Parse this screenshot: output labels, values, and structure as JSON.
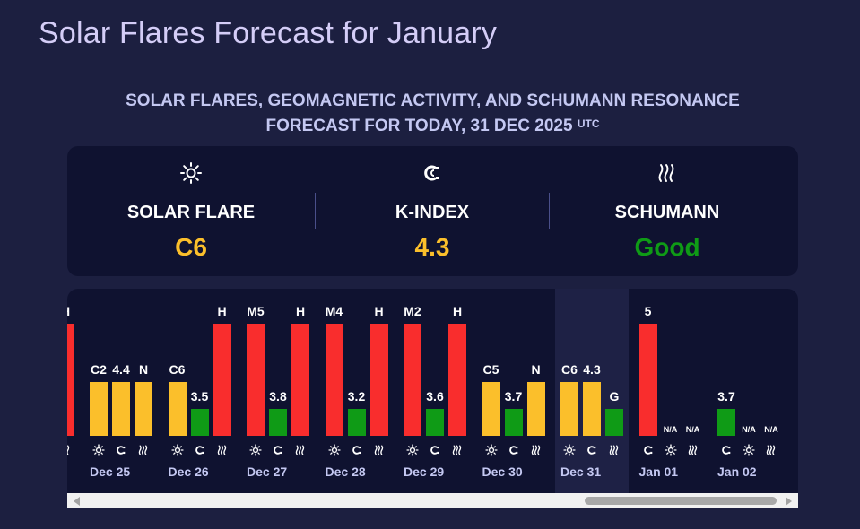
{
  "page": {
    "title": "Solar Flares Forecast for January",
    "subtitle_line1": "SOLAR FLARES, GEOMAGNETIC ACTIVITY, AND SCHUMANN RESONANCE",
    "subtitle_line2": "FORECAST FOR TODAY, 31 DEC 2025",
    "subtitle_sup": "UTC"
  },
  "summary": [
    {
      "key": "solar",
      "label": "SOLAR FLARE",
      "value": "C6",
      "icon": "sun-icon",
      "color": "#fbbf2b"
    },
    {
      "key": "kindex",
      "label": "K-INDEX",
      "value": "4.3",
      "icon": "magnet-icon",
      "color": "#fbbf2b"
    },
    {
      "key": "schumann",
      "label": "SCHUMANN",
      "value": "Good",
      "icon": "wave-icon",
      "color": "#0f9b16"
    }
  ],
  "colors": {
    "yellow": "#fbbf2b",
    "red": "#f92d2d",
    "green": "#0f9b16"
  },
  "chart_data": {
    "type": "bar",
    "series_names": [
      "solar flare",
      "k-index",
      "schumann"
    ],
    "partial_previous_day": {
      "schumann_label": "H",
      "color": "red"
    },
    "days": [
      {
        "date": "Dec 25",
        "bars": [
          {
            "label": "C2",
            "level": 0.48,
            "color": "yellow"
          },
          {
            "label": "4.4",
            "level": 0.48,
            "color": "yellow"
          },
          {
            "label": "N",
            "level": 0.48,
            "color": "yellow"
          }
        ]
      },
      {
        "date": "Dec 26",
        "bars": [
          {
            "label": "C6",
            "level": 0.48,
            "color": "yellow"
          },
          {
            "label": "3.5",
            "level": 0.24,
            "color": "green"
          },
          {
            "label": "H",
            "level": 1.0,
            "color": "red"
          }
        ]
      },
      {
        "date": "Dec 27",
        "bars": [
          {
            "label": "M5",
            "level": 1.0,
            "color": "red"
          },
          {
            "label": "3.8",
            "level": 0.24,
            "color": "green"
          },
          {
            "label": "H",
            "level": 1.0,
            "color": "red"
          }
        ]
      },
      {
        "date": "Dec 28",
        "bars": [
          {
            "label": "M4",
            "level": 1.0,
            "color": "red"
          },
          {
            "label": "3.2",
            "level": 0.24,
            "color": "green"
          },
          {
            "label": "H",
            "level": 1.0,
            "color": "red"
          }
        ]
      },
      {
        "date": "Dec 29",
        "bars": [
          {
            "label": "M2",
            "level": 1.0,
            "color": "red"
          },
          {
            "label": "3.6",
            "level": 0.24,
            "color": "green"
          },
          {
            "label": "H",
            "level": 1.0,
            "color": "red"
          }
        ]
      },
      {
        "date": "Dec 30",
        "bars": [
          {
            "label": "C5",
            "level": 0.48,
            "color": "yellow"
          },
          {
            "label": "3.7",
            "level": 0.24,
            "color": "green"
          },
          {
            "label": "N",
            "level": 0.48,
            "color": "yellow"
          }
        ]
      },
      {
        "date": "Dec 31",
        "today": true,
        "bars": [
          {
            "label": "C6",
            "level": 0.48,
            "color": "yellow"
          },
          {
            "label": "4.3",
            "level": 0.48,
            "color": "yellow"
          },
          {
            "label": "G",
            "level": 0.24,
            "color": "green"
          }
        ]
      },
      {
        "date": "Jan 01",
        "bars": [
          {
            "label": "5",
            "level": 1.0,
            "color": "red"
          },
          {
            "label": "N/A",
            "level": 0,
            "color": "none"
          },
          {
            "label": "N/A",
            "level": 0,
            "color": "none"
          }
        ]
      },
      {
        "date": "Jan 02",
        "bars": [
          {
            "label": "3.7",
            "level": 0.24,
            "color": "green"
          },
          {
            "label": "N/A",
            "level": 0,
            "color": "none"
          },
          {
            "label": "N/A",
            "level": 0,
            "color": "none"
          }
        ]
      }
    ]
  }
}
